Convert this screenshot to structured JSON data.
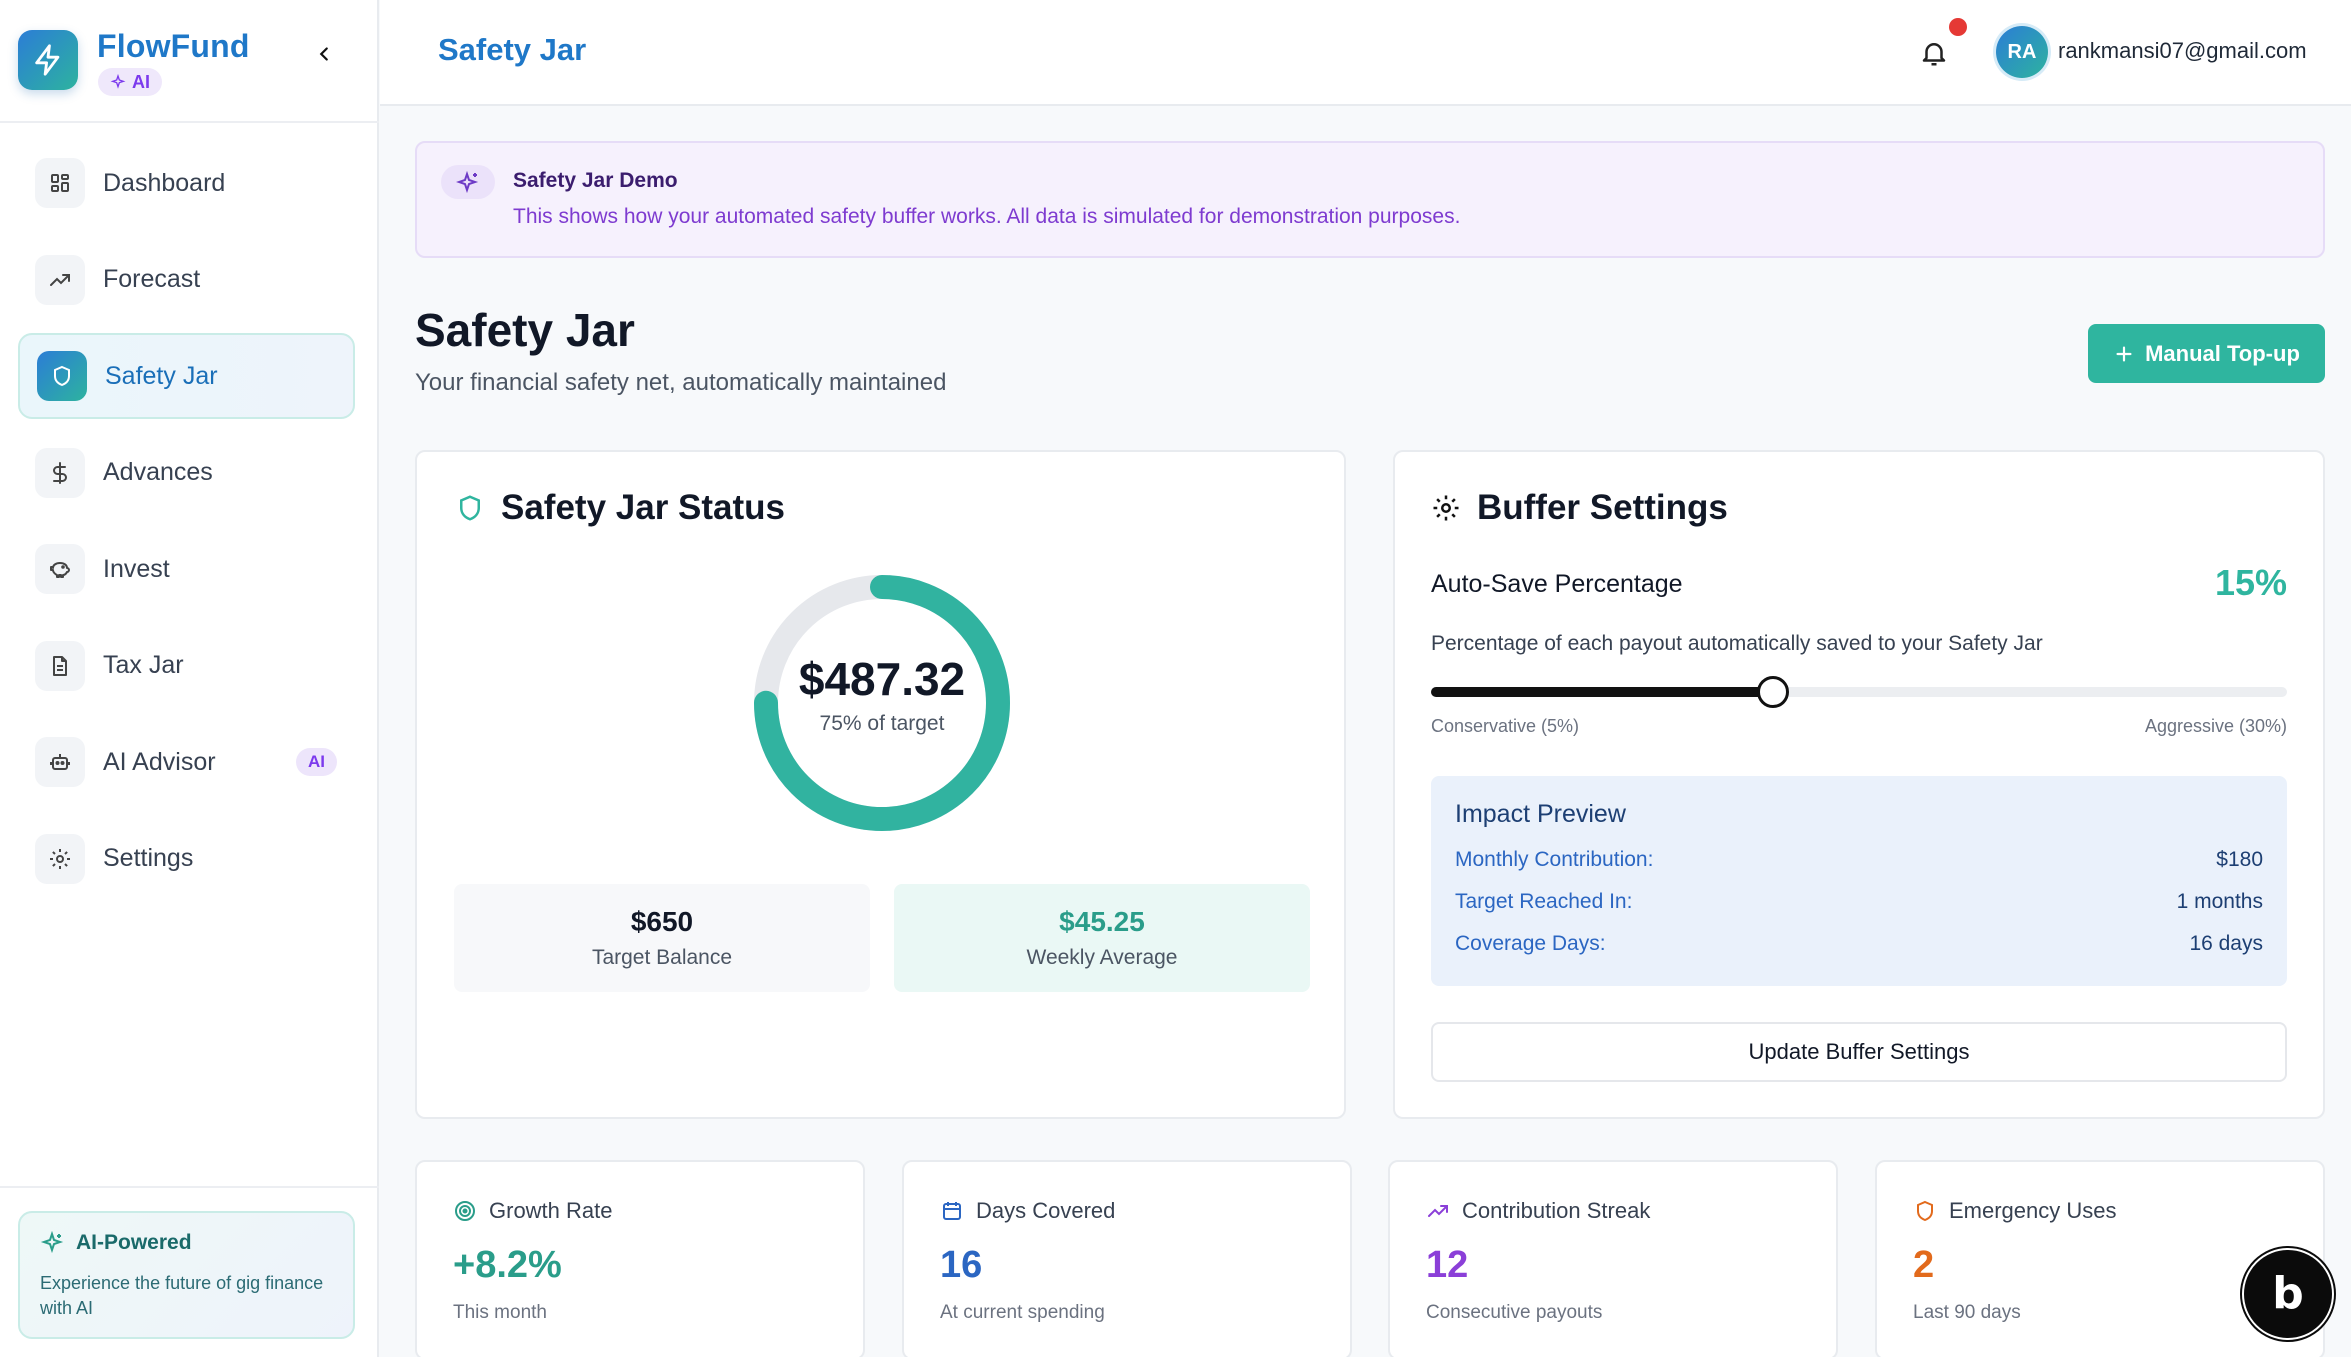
{
  "app": {
    "name": "FlowFund",
    "badge": "AI"
  },
  "sidebar": {
    "items": [
      {
        "label": "Dashboard",
        "icon": "grid-icon"
      },
      {
        "label": "Forecast",
        "icon": "trending-up-icon"
      },
      {
        "label": "Safety Jar",
        "icon": "shield-icon",
        "active": true
      },
      {
        "label": "Advances",
        "icon": "dollar-icon"
      },
      {
        "label": "Invest",
        "icon": "piggy-bank-icon"
      },
      {
        "label": "Tax Jar",
        "icon": "document-icon"
      },
      {
        "label": "AI Advisor",
        "icon": "bot-icon",
        "badge": "AI"
      },
      {
        "label": "Settings",
        "icon": "gear-icon"
      }
    ],
    "ai_card": {
      "title": "AI-Powered",
      "text": "Experience the future of gig finance with AI"
    }
  },
  "header": {
    "title": "Safety Jar",
    "avatar_initials": "RA",
    "user_email": "rankmansi07@gmail.com"
  },
  "banner": {
    "title": "Safety Jar Demo",
    "text": "This shows how your automated safety buffer works. All data is simulated for demonstration purposes."
  },
  "page": {
    "title": "Safety Jar",
    "subtitle": "Your financial safety net, automatically maintained",
    "topup_label": "Manual Top-up"
  },
  "status": {
    "title": "Safety Jar Status",
    "balance": "$487.32",
    "progress_label": "75% of target",
    "progress_fraction": 0.75,
    "target_value": "$650",
    "target_label": "Target Balance",
    "weekly_value": "$45.25",
    "weekly_label": "Weekly Average"
  },
  "buffer": {
    "title": "Buffer Settings",
    "auto_save_label": "Auto-Save Percentage",
    "auto_save_value": "15%",
    "auto_save_percent": 15,
    "slider_min_percent": 5,
    "slider_max_percent": 30,
    "description": "Percentage of each payout automatically saved to your Safety Jar",
    "min_label": "Conservative (5%)",
    "max_label": "Aggressive (30%)",
    "impact": {
      "title": "Impact Preview",
      "rows": [
        {
          "key": "Monthly Contribution:",
          "value": "$180"
        },
        {
          "key": "Target Reached In:",
          "value": "1 months"
        },
        {
          "key": "Coverage Days:",
          "value": "16 days"
        }
      ]
    },
    "update_label": "Update Buffer Settings"
  },
  "metrics": [
    {
      "label": "Growth Rate",
      "value": "+8.2%",
      "sub": "This month",
      "color": "#2a9d8a",
      "icon": "target-icon"
    },
    {
      "label": "Days Covered",
      "value": "16",
      "sub": "At current spending",
      "color": "#2b66c2",
      "icon": "calendar-icon"
    },
    {
      "label": "Contribution Streak",
      "value": "12",
      "sub": "Consecutive payouts",
      "color": "#8b3fd8",
      "icon": "trending-up-icon"
    },
    {
      "label": "Emergency Uses",
      "value": "2",
      "sub": "Last 90 days",
      "color": "#e26a1c",
      "icon": "shield-icon"
    }
  ],
  "colors": {
    "accent": "#2fb59f",
    "brand": "#1f78c8",
    "purple": "#7c3aed"
  }
}
